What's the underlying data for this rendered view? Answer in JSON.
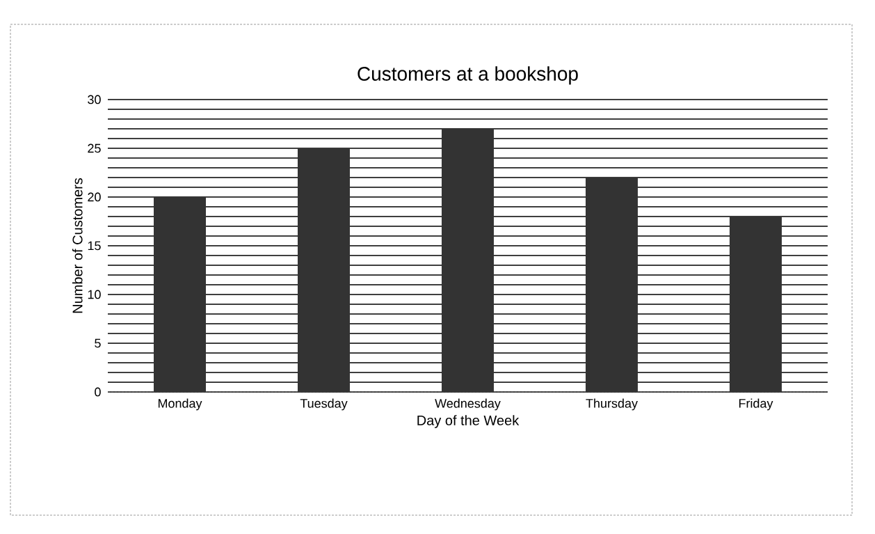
{
  "chart_data": {
    "type": "bar",
    "title": "Customers at a bookshop",
    "xlabel": "Day of the Week",
    "ylabel": "Number of Customers",
    "categories": [
      "Monday",
      "Tuesday",
      "Wednesday",
      "Thursday",
      "Friday"
    ],
    "values": [
      20,
      25,
      27,
      22,
      18
    ],
    "color": "#333333",
    "ylim": [
      0,
      30
    ],
    "yticks": [
      0,
      5,
      10,
      15,
      20,
      25,
      30
    ],
    "grid": "y"
  }
}
